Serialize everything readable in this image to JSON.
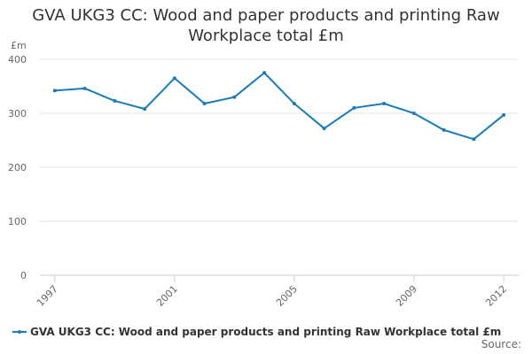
{
  "chart_data": {
    "type": "line",
    "title": "GVA UKG3 CC: Wood and paper products and printing Raw Workplace total £m",
    "y_label": "£m",
    "source": "Source:",
    "x": [
      1997,
      1998,
      1999,
      2000,
      2001,
      2002,
      2003,
      2004,
      2005,
      2006,
      2007,
      2008,
      2009,
      2010,
      2011,
      2012
    ],
    "series": [
      {
        "name": "GVA UKG3 CC: Wood and paper products and printing Raw Workplace total £m",
        "color": "#1a7bbb",
        "values": [
          342,
          346,
          323,
          308,
          365,
          318,
          330,
          375,
          318,
          272,
          310,
          318,
          300,
          269,
          252,
          297
        ]
      }
    ],
    "xlim": [
      1996.5,
      2012.5
    ],
    "xticks": [
      1997,
      2001,
      2005,
      2009,
      2012
    ],
    "ylim": [
      0,
      400
    ],
    "yticks": [
      0,
      100,
      200,
      300,
      400
    ],
    "grid": true
  }
}
